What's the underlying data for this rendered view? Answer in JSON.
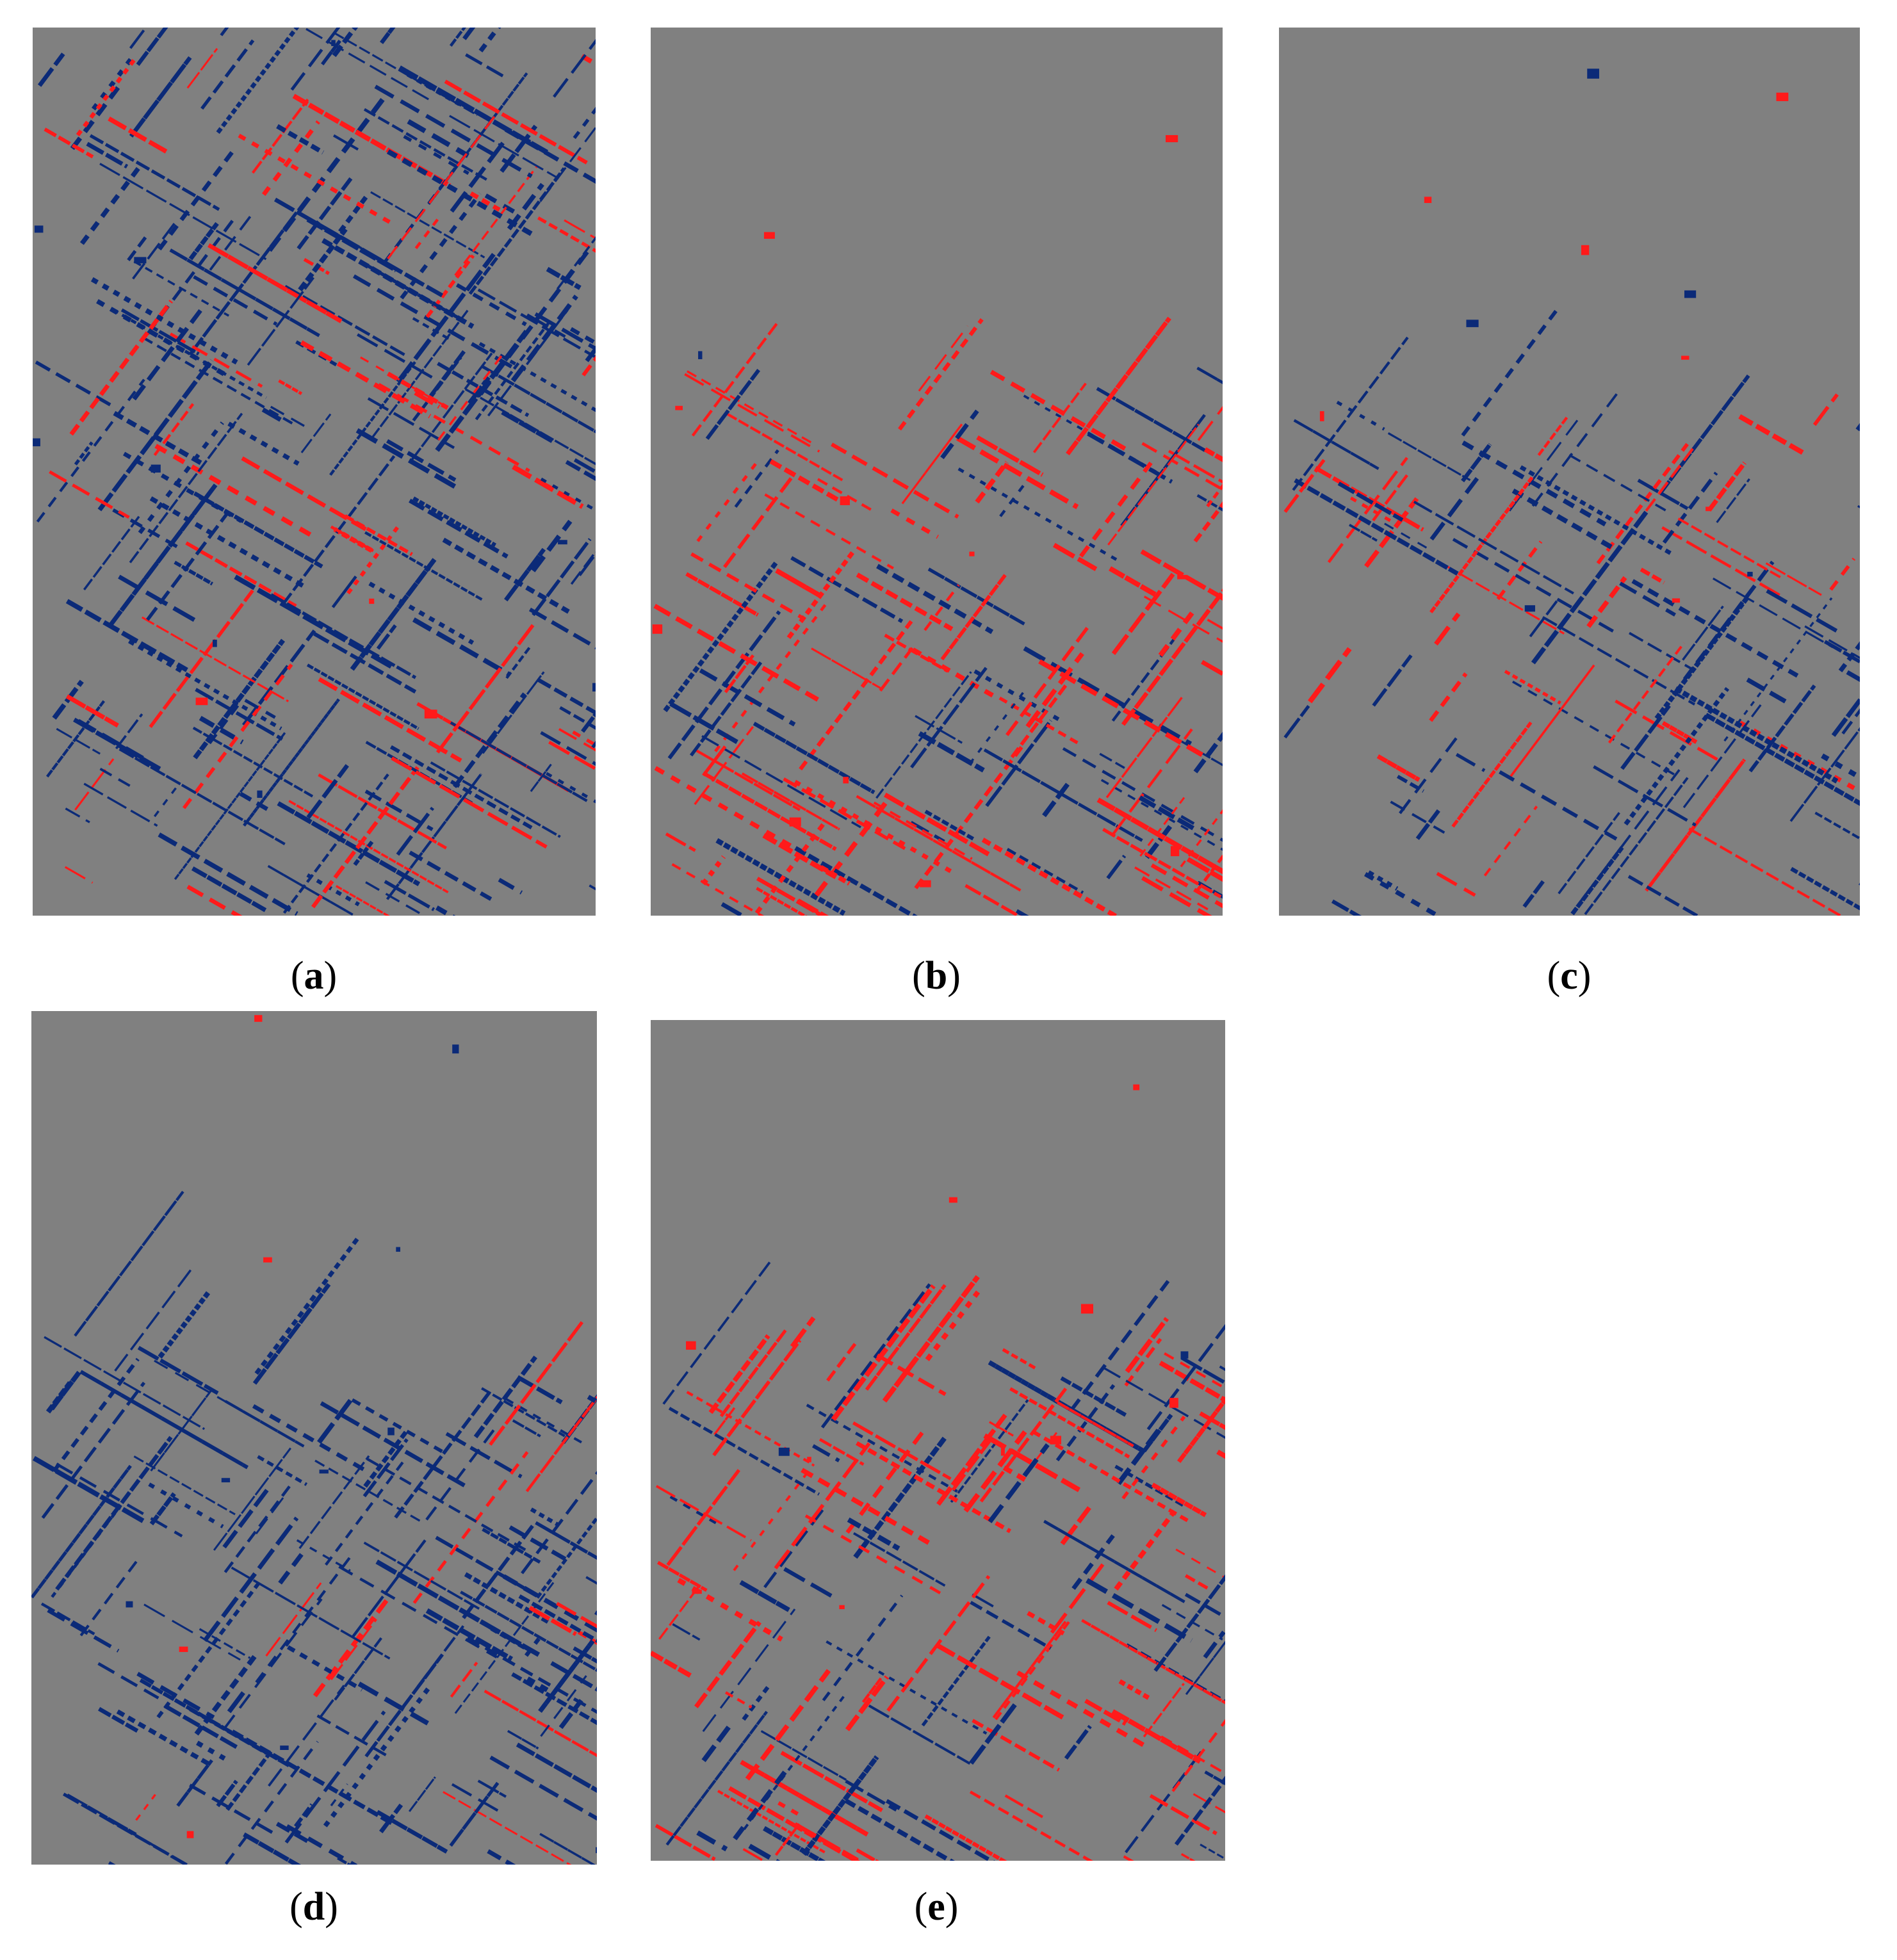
{
  "figure": {
    "panels": [
      {
        "label": [
          "(",
          "a",
          ")"
        ]
      },
      {
        "label": [
          "(",
          "b",
          ")"
        ]
      },
      {
        "label": [
          "(",
          "c",
          ")"
        ]
      },
      {
        "label": [
          "(",
          "d",
          ")"
        ]
      },
      {
        "label": [
          "(",
          "e",
          ")"
        ]
      }
    ]
  }
}
